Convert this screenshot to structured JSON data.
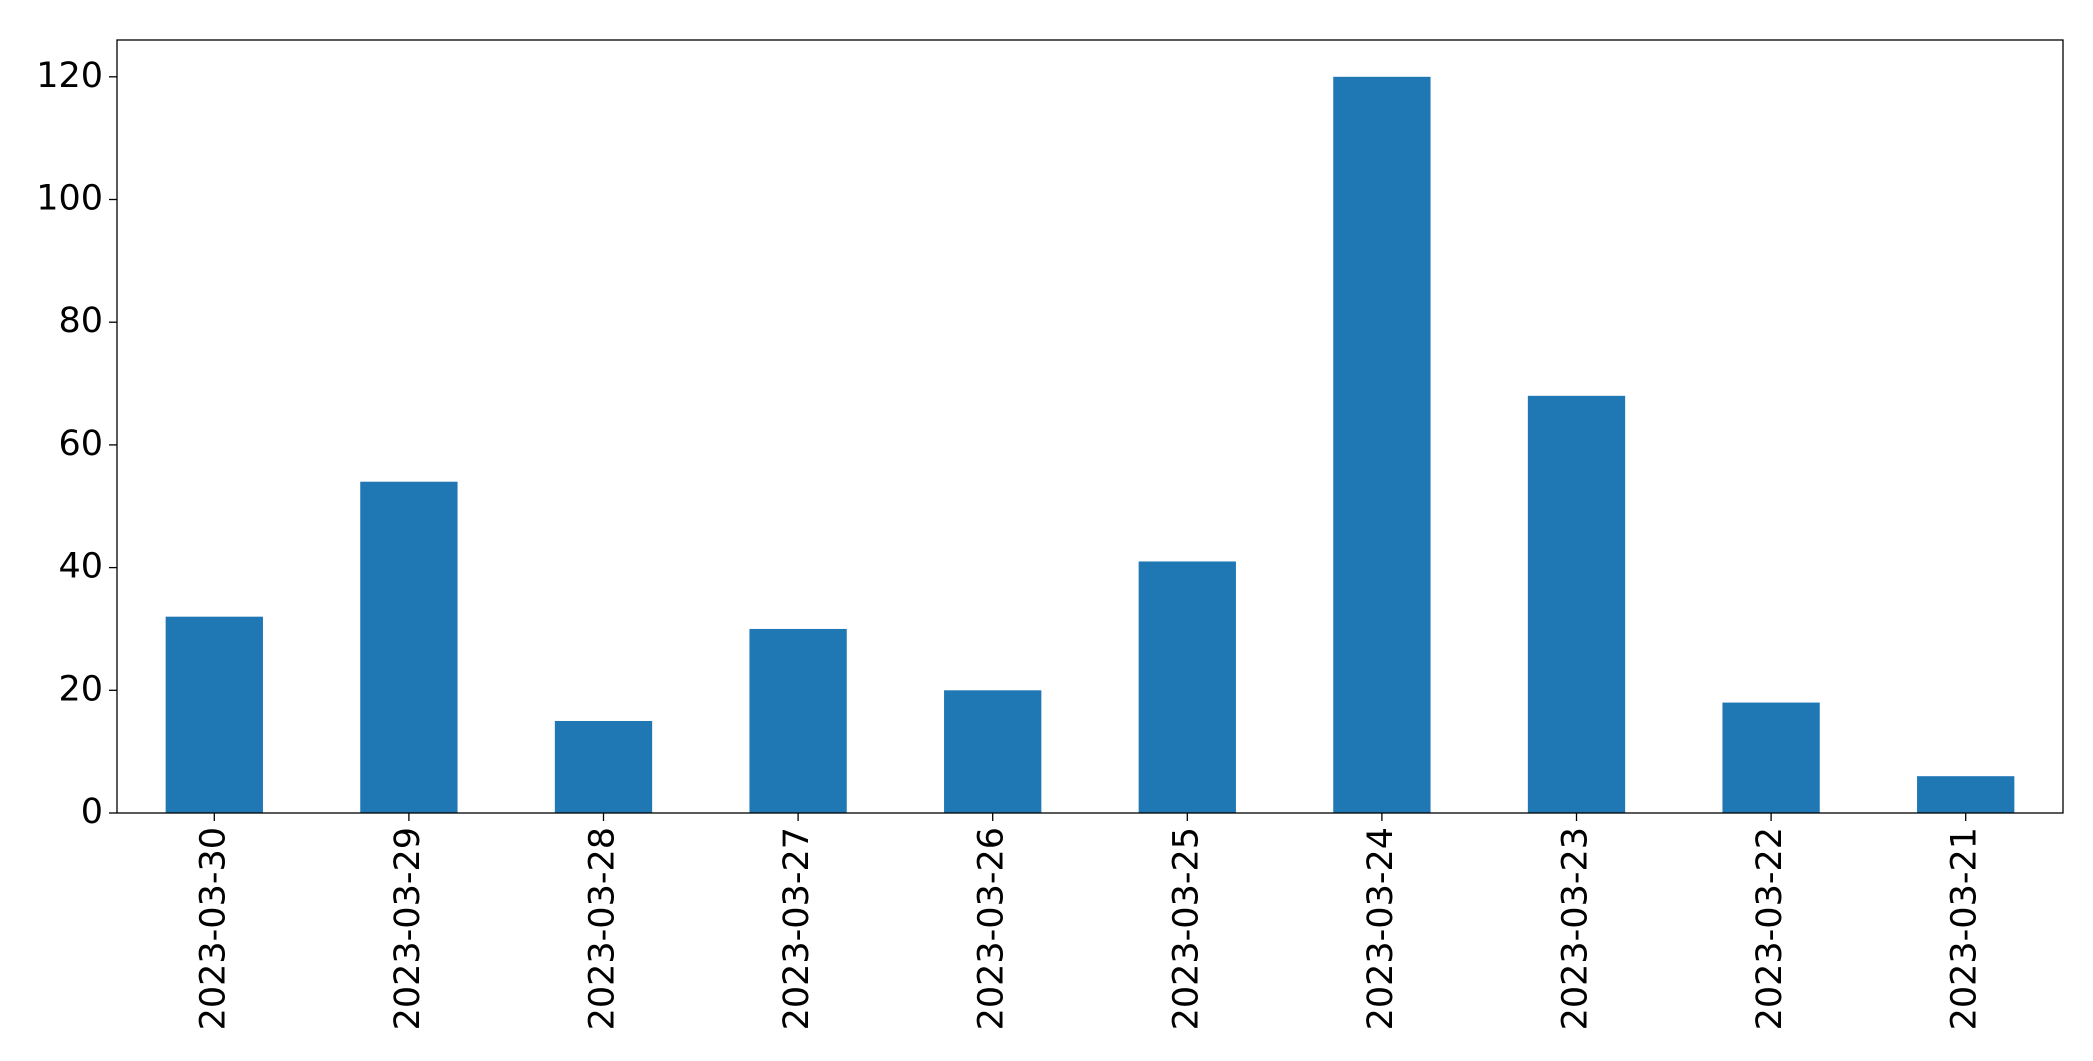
{
  "chart_data": {
    "type": "bar",
    "categories": [
      "2023-03-30",
      "2023-03-29",
      "2023-03-28",
      "2023-03-27",
      "2023-03-26",
      "2023-03-25",
      "2023-03-24",
      "2023-03-23",
      "2023-03-22",
      "2023-03-21"
    ],
    "values": [
      32,
      54,
      15,
      30,
      20,
      41,
      120,
      68,
      18,
      6
    ],
    "color": "#1f77b4",
    "ylim": [
      0,
      126
    ],
    "yticks": [
      0,
      20,
      40,
      60,
      80,
      100,
      120
    ],
    "grid": false
  }
}
